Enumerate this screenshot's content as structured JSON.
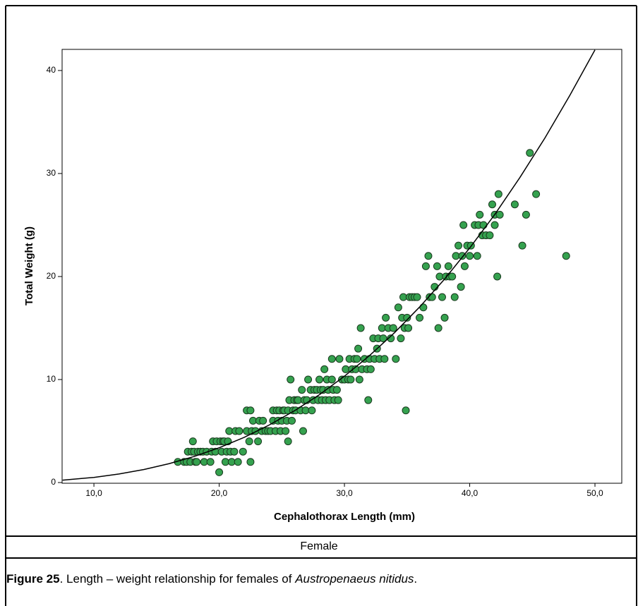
{
  "chart_data": {
    "type": "scatter",
    "xlabel": "Cephalothorax Length (mm)",
    "ylabel": "Total Weight (g)",
    "xlim": [
      7.46,
      52.14
    ],
    "ylim": [
      0,
      42.05
    ],
    "xticks": [
      {
        "value": 10,
        "label": "10,0"
      },
      {
        "value": 20,
        "label": "20,0"
      },
      {
        "value": 30,
        "label": "30,0"
      },
      {
        "value": 40,
        "label": "40,0"
      },
      {
        "value": 50,
        "label": "50,0"
      }
    ],
    "yticks": [
      0,
      10,
      20,
      30,
      40
    ],
    "color": "#35a24f",
    "x": [
      16.7,
      17.2,
      17.4,
      17.5,
      17.7,
      17.8,
      17.9,
      18.0,
      18.1,
      18.2,
      18.3,
      18.5,
      18.7,
      18.8,
      19.0,
      19.3,
      19.4,
      19.5,
      19.7,
      19.8,
      20.0,
      20.1,
      20.2,
      20.3,
      20.4,
      20.5,
      20.6,
      20.7,
      20.8,
      20.9,
      21.0,
      21.2,
      21.3,
      21.5,
      21.6,
      21.9,
      22.2,
      22.2,
      22.4,
      22.5,
      22.5,
      22.6,
      22.7,
      22.9,
      23.1,
      23.2,
      23.4,
      23.5,
      23.7,
      23.9,
      24.1,
      24.3,
      24.3,
      24.5,
      24.6,
      24.7,
      24.8,
      24.9,
      25.0,
      25.1,
      25.2,
      25.3,
      25.4,
      25.5,
      25.5,
      25.6,
      25.7,
      25.8,
      25.9,
      26.0,
      26.1,
      26.2,
      26.3,
      26.5,
      26.6,
      26.7,
      26.8,
      26.9,
      27.0,
      27.1,
      27.3,
      27.4,
      27.5,
      27.6,
      27.8,
      27.9,
      28.0,
      28.1,
      28.2,
      28.3,
      28.4,
      28.5,
      28.6,
      28.7,
      28.8,
      29.0,
      29.0,
      29.1,
      29.2,
      29.4,
      29.5,
      29.6,
      29.8,
      30.0,
      30.1,
      30.3,
      30.4,
      30.5,
      30.6,
      30.8,
      30.9,
      31.0,
      31.1,
      31.2,
      31.3,
      31.4,
      31.6,
      31.8,
      31.9,
      32.0,
      32.1,
      32.3,
      32.4,
      32.6,
      32.7,
      32.8,
      33.0,
      33.1,
      33.2,
      33.3,
      33.5,
      33.7,
      33.9,
      34.1,
      34.3,
      34.5,
      34.6,
      34.7,
      34.8,
      34.9,
      35.0,
      35.1,
      35.2,
      35.4,
      35.6,
      35.8,
      36.0,
      36.3,
      36.5,
      36.7,
      36.8,
      37.0,
      37.2,
      37.4,
      37.5,
      37.6,
      37.8,
      38.0,
      38.1,
      38.3,
      38.4,
      38.6,
      38.8,
      38.9,
      39.1,
      39.3,
      39.4,
      39.5,
      39.6,
      39.8,
      40.0,
      40.1,
      40.4,
      40.6,
      40.7,
      40.8,
      41.0,
      41.1,
      41.3,
      41.6,
      41.8,
      42.0,
      42.0,
      42.2,
      42.3,
      42.4,
      43.6,
      44.2,
      44.5,
      44.8,
      45.3,
      47.7
    ],
    "values": [
      2,
      2,
      2,
      3,
      2,
      3,
      4,
      3,
      2,
      2,
      3,
      3,
      3,
      2,
      3,
      2,
      3,
      4,
      3,
      4,
      1,
      4,
      3,
      4,
      4,
      2,
      3,
      4,
      5,
      3,
      2,
      3,
      5,
      2,
      5,
      3,
      5,
      7,
      4,
      7,
      2,
      5,
      6,
      5,
      4,
      6,
      5,
      6,
      5,
      5,
      5,
      6,
      7,
      5,
      7,
      6,
      7,
      5,
      6,
      7,
      7,
      5,
      6,
      4,
      7,
      8,
      10,
      6,
      7,
      8,
      7,
      8,
      8,
      7,
      9,
      5,
      8,
      7,
      8,
      10,
      9,
      7,
      8,
      9,
      9,
      8,
      10,
      9,
      8,
      9,
      11,
      8,
      10,
      9,
      8,
      10,
      12,
      9,
      8,
      9,
      8,
      12,
      10,
      10,
      11,
      10,
      12,
      10,
      11,
      12,
      11,
      12,
      13,
      10,
      15,
      11,
      12,
      11,
      8,
      12,
      11,
      14,
      12,
      13,
      14,
      12,
      15,
      14,
      12,
      16,
      15,
      14,
      15,
      12,
      17,
      14,
      16,
      18,
      15,
      7,
      16,
      15,
      18,
      18,
      18,
      18,
      16,
      17,
      21,
      22,
      18,
      18,
      19,
      21,
      15,
      20,
      18,
      16,
      20,
      21,
      20,
      20,
      18,
      22,
      23,
      19,
      22,
      25,
      21,
      23,
      22,
      23,
      25,
      22,
      25,
      26,
      24,
      25,
      24,
      24,
      27,
      26,
      25,
      20,
      28,
      26,
      27,
      23,
      26,
      32,
      28,
      22
    ],
    "fit": {
      "color": "#000000",
      "x": [
        7.5,
        10,
        12,
        14,
        16,
        18,
        20,
        22,
        24,
        26,
        28,
        30,
        32,
        34,
        36,
        38,
        40,
        42,
        44,
        46,
        48,
        50
      ],
      "values": [
        0.23,
        0.5,
        0.83,
        1.27,
        1.83,
        2.53,
        3.38,
        4.39,
        5.59,
        6.96,
        8.53,
        10.32,
        12.32,
        14.55,
        17.04,
        19.76,
        22.77,
        26.02,
        29.6,
        33.44,
        37.6,
        42.0
      ]
    }
  },
  "panel_label": "Female",
  "caption": {
    "label": "Figure 25",
    "text": ". Length – weight relationship for females of ",
    "species": "Austropenaeus nitidus",
    "end": "."
  }
}
